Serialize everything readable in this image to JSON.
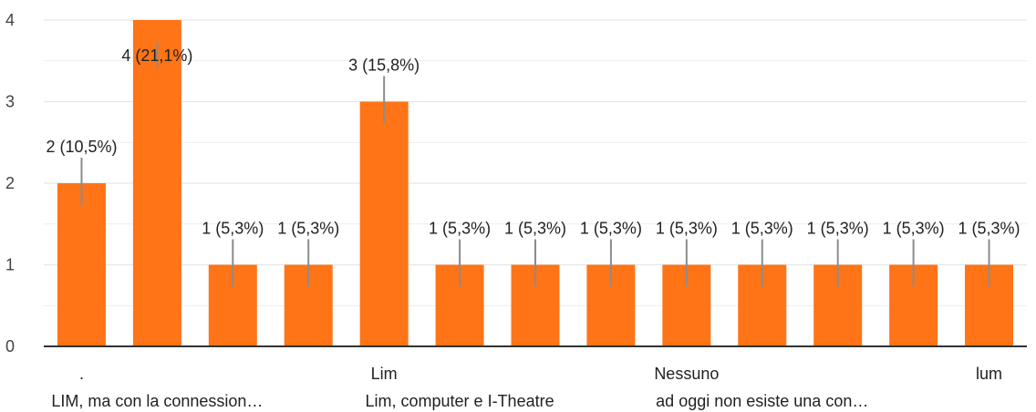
{
  "chart_data": {
    "type": "bar",
    "categories": [
      ".",
      "LIM, ma con la connession…",
      "",
      "",
      "Lim",
      "Lim, computer e I-Theatre",
      "",
      "",
      "Nessuno",
      "ad oggi non esiste una con…",
      "",
      "",
      "lum"
    ],
    "values": [
      2,
      4,
      1,
      1,
      3,
      1,
      1,
      1,
      1,
      1,
      1,
      1,
      1
    ],
    "data_labels": [
      "2 (10,5%)",
      "4 (21,1%)",
      "1 (5,3%)",
      "1 (5,3%)",
      "3 (15,8%)",
      "1 (5,3%)",
      "1 (5,3%)",
      "1 (5,3%)",
      "1 (5,3%)",
      "1 (5,3%)",
      "1 (5,3%)",
      "1 (5,3%)",
      "1 (5,3%)"
    ],
    "yticks": [
      "0",
      "1",
      "2",
      "3",
      "4"
    ],
    "ylim": [
      0,
      4
    ],
    "title": "",
    "xlabel": "",
    "ylabel": "",
    "grid": true,
    "legend": "none",
    "colors": {
      "bar": "#ff7417",
      "grid": "#e6e6e6",
      "axis": "#333333",
      "leader": "#8c8c8c"
    }
  }
}
